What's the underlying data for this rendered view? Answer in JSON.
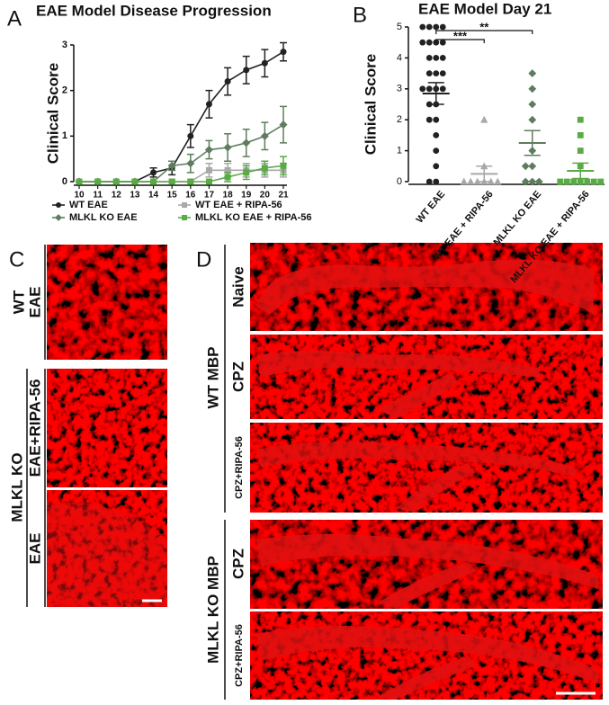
{
  "chart_data": [
    {
      "type": "line",
      "panel_label": "A",
      "title": "EAE Model Disease Progression",
      "y_label": "Clinical Score",
      "x": [
        10,
        11,
        12,
        13,
        14,
        15,
        16,
        17,
        18,
        19,
        20,
        21
      ],
      "xlim": [
        10,
        21
      ],
      "xticks": [
        10,
        11,
        12,
        13,
        14,
        15,
        16,
        17,
        18,
        19,
        20,
        21
      ],
      "ylim": [
        0,
        3
      ],
      "yticks": [
        0,
        1,
        2,
        3
      ],
      "series": [
        {
          "name": "WT EAE",
          "color": "#222222",
          "marker": "circle",
          "values": [
            0,
            0,
            0,
            0,
            0.2,
            0.3,
            1.0,
            1.7,
            2.2,
            2.45,
            2.6,
            2.85
          ],
          "errors": [
            0,
            0,
            0,
            0,
            0.1,
            0.15,
            0.25,
            0.3,
            0.3,
            0.3,
            0.3,
            0.2
          ]
        },
        {
          "name": "WT EAE + RIPA-56",
          "color": "#a8a8a8",
          "marker": "square",
          "values": [
            0,
            0,
            0,
            0,
            0,
            0,
            0,
            0.25,
            0.25,
            0.25,
            0.25,
            0.25
          ],
          "errors": [
            0,
            0,
            0,
            0,
            0,
            0,
            0,
            0.15,
            0.15,
            0.15,
            0.15,
            0.15
          ]
        },
        {
          "name": "MLKL KO EAE",
          "color": "#5e7d5e",
          "marker": "diamond",
          "values": [
            0,
            0,
            0,
            0,
            0,
            0.35,
            0.4,
            0.7,
            0.75,
            0.85,
            1.0,
            1.25
          ],
          "errors": [
            0,
            0,
            0,
            0,
            0,
            0.1,
            0.2,
            0.2,
            0.3,
            0.3,
            0.3,
            0.4
          ]
        },
        {
          "name": "MLKL KO EAE + RIPA-56",
          "color": "#5aaa46",
          "marker": "square",
          "values": [
            0,
            0,
            0,
            0,
            0,
            0,
            0,
            0,
            0.1,
            0.2,
            0.3,
            0.35
          ],
          "errors": [
            0,
            0,
            0,
            0,
            0,
            0,
            0,
            0,
            0.1,
            0.15,
            0.15,
            0.2
          ]
        }
      ]
    },
    {
      "type": "dot",
      "panel_label": "B",
      "title": "EAE Model Day 21",
      "y_label": "Clinical Score",
      "categories": [
        "WT EAE",
        "WT EAE + RIPA-56",
        "MLKL KO EAE",
        "MLKL KO EAE + RIPA-56"
      ],
      "ylim": [
        0,
        5
      ],
      "yticks": [
        0,
        1,
        2,
        3,
        4,
        5
      ],
      "groups": [
        {
          "color": "#222222",
          "marker": "circle",
          "mean": 2.85,
          "error": 0.35,
          "values": [
            5,
            5,
            5,
            5,
            4.5,
            4.5,
            4.5,
            4.5,
            4,
            4,
            4,
            3.5,
            3.5,
            3.5,
            3,
            3,
            3,
            3,
            2.5,
            2.5,
            2,
            2,
            1.5,
            1,
            0.5,
            0,
            0
          ]
        },
        {
          "color": "#a8a8a8",
          "marker": "triangle",
          "mean": 0.25,
          "error": 0.25,
          "values": [
            2,
            0.5,
            0,
            0,
            0,
            0,
            0,
            0
          ]
        },
        {
          "color": "#5e7d5e",
          "marker": "diamond",
          "mean": 1.25,
          "error": 0.4,
          "values": [
            3.5,
            3,
            2.5,
            2,
            1,
            0.5,
            0.5,
            0,
            0,
            0
          ]
        },
        {
          "color": "#5aaa46",
          "marker": "square",
          "mean": 0.35,
          "error": 0.25,
          "values": [
            2,
            1.5,
            1,
            0.5,
            0,
            0,
            0,
            0,
            0,
            0,
            0
          ]
        }
      ],
      "comparisons": [
        {
          "label": "***",
          "groups": [
            0,
            1
          ]
        },
        {
          "label": "**",
          "groups": [
            0,
            2
          ]
        }
      ]
    }
  ],
  "images": {
    "C": {
      "panel_label": "C",
      "group_labels": [
        "WT",
        "MLKL KO"
      ],
      "row_labels": [
        "EAE",
        "EAE+RIPA-56",
        "EAE"
      ]
    },
    "D": {
      "panel_label": "D",
      "group_labels": [
        "WT MBP",
        "MLKL KO MBP"
      ],
      "row_labels": [
        "Naive",
        "CPZ",
        "CPZ+RIPA-56",
        "CPZ",
        "CPZ+RIPA-56"
      ]
    }
  }
}
